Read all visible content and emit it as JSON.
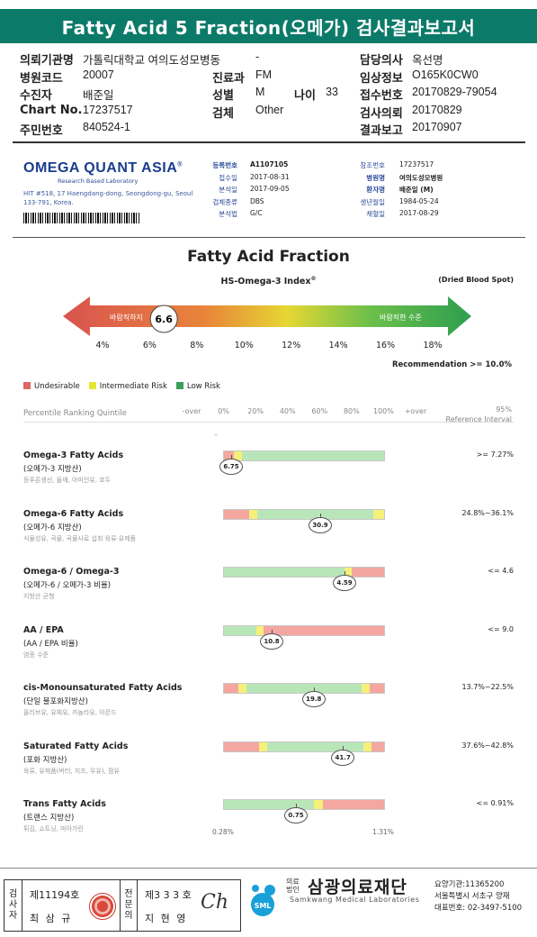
{
  "title": "Fatty Acid 5 Fraction(오메가) 검사결과보고서",
  "patient": {
    "rows": [
      [
        {
          "label": "의뢰기관명",
          "value": "가톨릭대학교 여의도성모병동"
        },
        {
          "label": "",
          "value": "-"
        },
        {
          "label": "담당의사",
          "value": "옥선명"
        }
      ],
      [
        {
          "label": "병원코드",
          "value": "20007"
        },
        {
          "label": "진료과",
          "value": "FM"
        },
        {
          "label": "임상정보",
          "value": "O165K0CW0"
        }
      ],
      [
        {
          "label": "수진자",
          "value": "배준일"
        },
        {
          "label": "성별",
          "value": "M"
        },
        {
          "label": "접수번호",
          "value": "20170829-79054"
        }
      ],
      [
        {
          "label": "Chart No.",
          "value": "17237517"
        },
        {
          "label": "검체",
          "value": "Other"
        },
        {
          "label": "검사의뢰",
          "value": "20170829"
        }
      ],
      [
        {
          "label": "주민번호",
          "value": "840524-1"
        },
        {
          "label": "",
          "value": ""
        },
        {
          "label": "결과보고",
          "value": "20170907"
        }
      ]
    ],
    "age_label": "나이",
    "age_value": "33"
  },
  "lab": {
    "logo": "OMEGA QUANT ASIA",
    "logo_mark": "®",
    "subtitle": "Research Based Laboratory",
    "address": "HIT #518, 17 Haengdang-dong, Seongdong-gu, Seoul 133-791, Korea.",
    "left": [
      {
        "label": "등록번호",
        "value": "A1107105",
        "bold": true
      },
      {
        "label": "접수일",
        "value": "2017-08-31"
      },
      {
        "label": "분석일",
        "value": "2017-09-05"
      },
      {
        "label": "검체종류",
        "value": "DBS"
      },
      {
        "label": "분석법",
        "value": "G/C"
      }
    ],
    "right": [
      {
        "label": "참조번호",
        "value": "17237517"
      },
      {
        "label": "병원명",
        "value": "여의도성모병원",
        "bold": true
      },
      {
        "label": "환자명",
        "value": "배준일 (M)",
        "bold": true
      },
      {
        "label": "생년월일",
        "value": "1984-05-24"
      },
      {
        "label": "채혈일",
        "value": "2017-08-29"
      }
    ]
  },
  "index": {
    "title": "Fatty Acid Fraction",
    "subtitle": "HS-Omega-3 Index",
    "subtitle_mark": "®",
    "sample": "(Dried Blood Spot)",
    "left_label": "바람직하지",
    "right_label": "바람직한 수준",
    "value": 6.6,
    "value_text": "6.6",
    "ticks": [
      "4%",
      "6%",
      "8%",
      "10%",
      "12%",
      "14%",
      "16%",
      "18%"
    ],
    "tick_values": [
      4,
      6,
      8,
      10,
      12,
      14,
      16,
      18
    ],
    "recommendation": "Recommendation  >= 10.0%"
  },
  "legend": [
    {
      "label": "Undesirable",
      "color": "#e06666"
    },
    {
      "label": "Intermediate Risk",
      "color": "#e6e633"
    },
    {
      "label": "Low Risk",
      "color": "#3aa05a"
    }
  ],
  "percentile": {
    "title": "Percentile Ranking Quintile",
    "scale": [
      "-over",
      "0%",
      "20%",
      "40%",
      "60%",
      "80%",
      "100%",
      "+over"
    ],
    "ref_title_1": "95%",
    "ref_title_2": "Reference Interval",
    "dash": "–"
  },
  "colors": {
    "header": "#0c7a68",
    "red": "#f4a6a0",
    "yellow": "#f5f07a",
    "green": "#b9e6b9"
  },
  "acids": [
    {
      "name": "Omega-3 Fatty Acids",
      "kor": "(오메가-3 지방산)",
      "food": "등푸른생선, 들깨, 아미인유, 호두",
      "range": ">= 7.27%",
      "value_text": "6.75",
      "marker_pct": 0.05,
      "segments": [
        [
          "red",
          6
        ],
        [
          "yellow",
          5
        ],
        [
          "green",
          89
        ]
      ]
    },
    {
      "name": "Omega-6 Fatty Acids",
      "kor": "(오메가-6 지방산)",
      "food": "식물성유, 곡물, 곡물사료 섭취 육류·유제품",
      "range": "24.8%~36.1%",
      "value_text": "30.9",
      "marker_pct": 0.6,
      "segments": [
        [
          "red",
          16
        ],
        [
          "yellow",
          5
        ],
        [
          "green",
          72
        ],
        [
          "yellow",
          7
        ]
      ]
    },
    {
      "name": "Omega-6 / Omega-3",
      "kor": "(오메가-6 / 오메가-3 비율)",
      "food": "지방산 균형",
      "range": "<= 4.6",
      "value_text": "4.59",
      "marker_pct": 0.75,
      "segments": [
        [
          "green",
          75
        ],
        [
          "yellow",
          5
        ],
        [
          "red",
          20
        ]
      ]
    },
    {
      "name": "AA / EPA",
      "kor": "(AA / EPA 비율)",
      "food": "염증 수준",
      "range": "<= 9.0",
      "value_text": "10.8",
      "marker_pct": 0.3,
      "segments": [
        [
          "green",
          20
        ],
        [
          "yellow",
          5
        ],
        [
          "red",
          75
        ]
      ]
    },
    {
      "name": "cis-Monounsaturated Fatty Acids",
      "kor": "(단일 불포화지방산)",
      "food": "올리브유, 유채유, 카놀라유, 아몬드",
      "range": "13.7%~22.5%",
      "value_text": "19.8",
      "marker_pct": 0.56,
      "segments": [
        [
          "red",
          9
        ],
        [
          "yellow",
          5
        ],
        [
          "green",
          72
        ],
        [
          "yellow",
          5
        ],
        [
          "red",
          9
        ]
      ]
    },
    {
      "name": "Saturated Fatty Acids",
      "kor": "(포화 지방산)",
      "food": "육류, 유제품(버터, 치즈, 우유), 팜유",
      "range": "37.6%~42.8%",
      "value_text": "41.7",
      "marker_pct": 0.74,
      "segments": [
        [
          "red",
          22
        ],
        [
          "yellow",
          5
        ],
        [
          "green",
          60
        ],
        [
          "yellow",
          5
        ],
        [
          "red",
          8
        ]
      ]
    },
    {
      "name": "Trans Fatty Acids",
      "kor": "(트랜스 지방산)",
      "food": "튀김, 쇼트닝, 마아가린",
      "range": "<= 0.91%",
      "value_text": "0.75",
      "marker_pct": 0.45,
      "segments": [
        [
          "green",
          56
        ],
        [
          "yellow",
          6
        ],
        [
          "red",
          38
        ]
      ]
    }
  ],
  "axis_min": "0.28%",
  "axis_max": "1.31%",
  "footer": {
    "col1_header": [
      "검",
      "사",
      "자"
    ],
    "col1_line1": "제11194호",
    "col1_line2": "최 삼 규",
    "col2_header": [
      "전",
      "문",
      "의"
    ],
    "col2_line1": "제3 3 3 호",
    "col2_line2": "지 현 영",
    "signature": "Ch",
    "brand_top_1": "의료",
    "brand_top_2": "법인",
    "brand_name": "삼광의료재단",
    "brand_eng": "Samkwang Medical Laboratories",
    "logo_text": "SML",
    "info_1": "요양기관:11365200",
    "info_2": "서울특별시 서초구 양재",
    "info_3": "대표번호: 02-3497-5100"
  }
}
